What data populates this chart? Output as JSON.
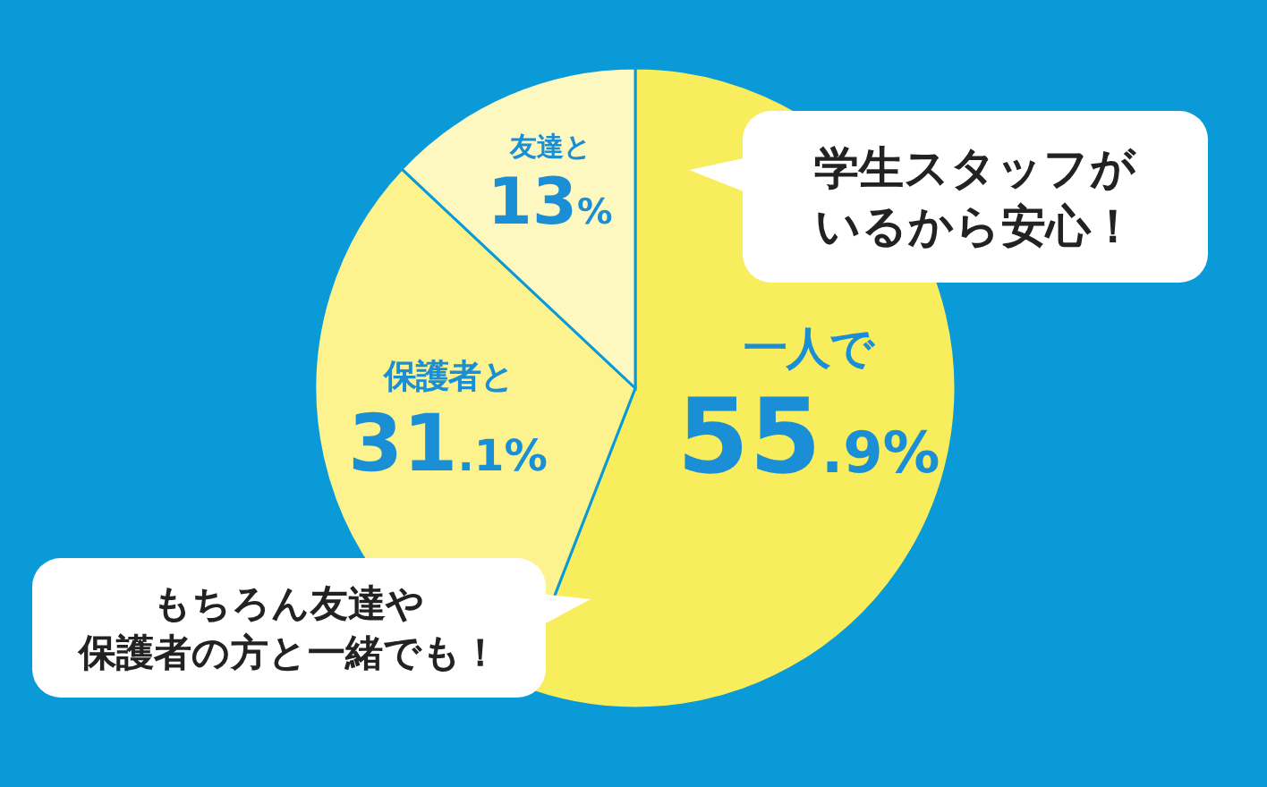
{
  "chart_data": {
    "type": "pie",
    "categories": [
      "一人で",
      "保護者と",
      "友達と"
    ],
    "values": [
      55.9,
      31.1,
      13
    ],
    "colors": [
      "#f8ed5c",
      "#fcf38e",
      "#fdf7c0"
    ],
    "value_labels": [
      "55.9%",
      "31.1%",
      "13%"
    ],
    "annotations": [
      "学生スタッフがいるから安心！",
      "もちろん友達や保護者の方と一緒でも！"
    ]
  }
}
